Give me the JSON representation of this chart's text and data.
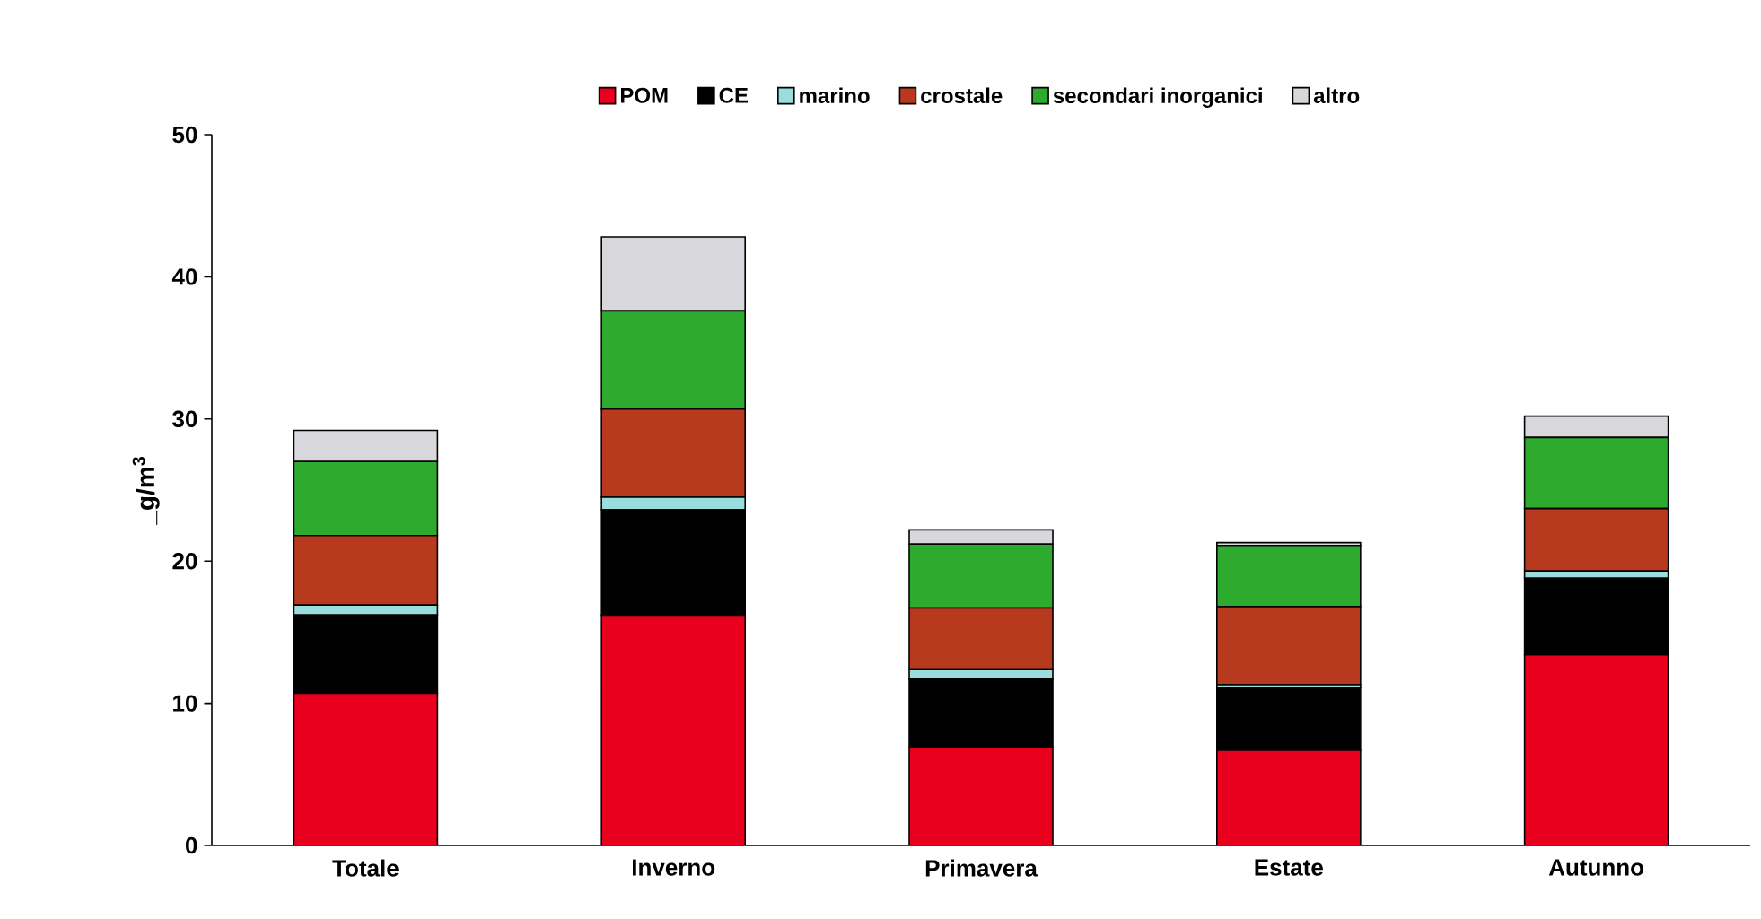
{
  "chart_data": {
    "type": "bar",
    "stacked": true,
    "ylabel": "_g/m$^{3}$",
    "categories": [
      "Totale",
      "Inverno",
      "Primavera",
      "Estate",
      "Autunno"
    ],
    "series": [
      {
        "name": "POM",
        "color": "#e8001c",
        "values": [
          10.7,
          16.2,
          6.9,
          6.7,
          13.4
        ]
      },
      {
        "name": "CE",
        "color": "#000000",
        "values": [
          5.5,
          7.4,
          4.8,
          4.4,
          5.4
        ]
      },
      {
        "name": "marino",
        "color": "#99dddd",
        "values": [
          0.7,
          0.9,
          0.7,
          0.2,
          0.5
        ]
      },
      {
        "name": "crostale",
        "color": "#b83a1e",
        "values": [
          4.9,
          6.2,
          4.3,
          5.5,
          4.4
        ]
      },
      {
        "name": "secondari inorganici",
        "color": "#2eaa2e",
        "values": [
          5.2,
          6.9,
          4.5,
          4.3,
          5.0
        ]
      },
      {
        "name": "altro",
        "color": "#d8d8dc",
        "values": [
          2.2,
          5.2,
          1.0,
          0.2,
          1.5
        ]
      }
    ],
    "ylim": [
      0,
      50
    ],
    "yticks": [
      0,
      10,
      20,
      30,
      40,
      50
    ],
    "grid": false,
    "legend": "top"
  }
}
